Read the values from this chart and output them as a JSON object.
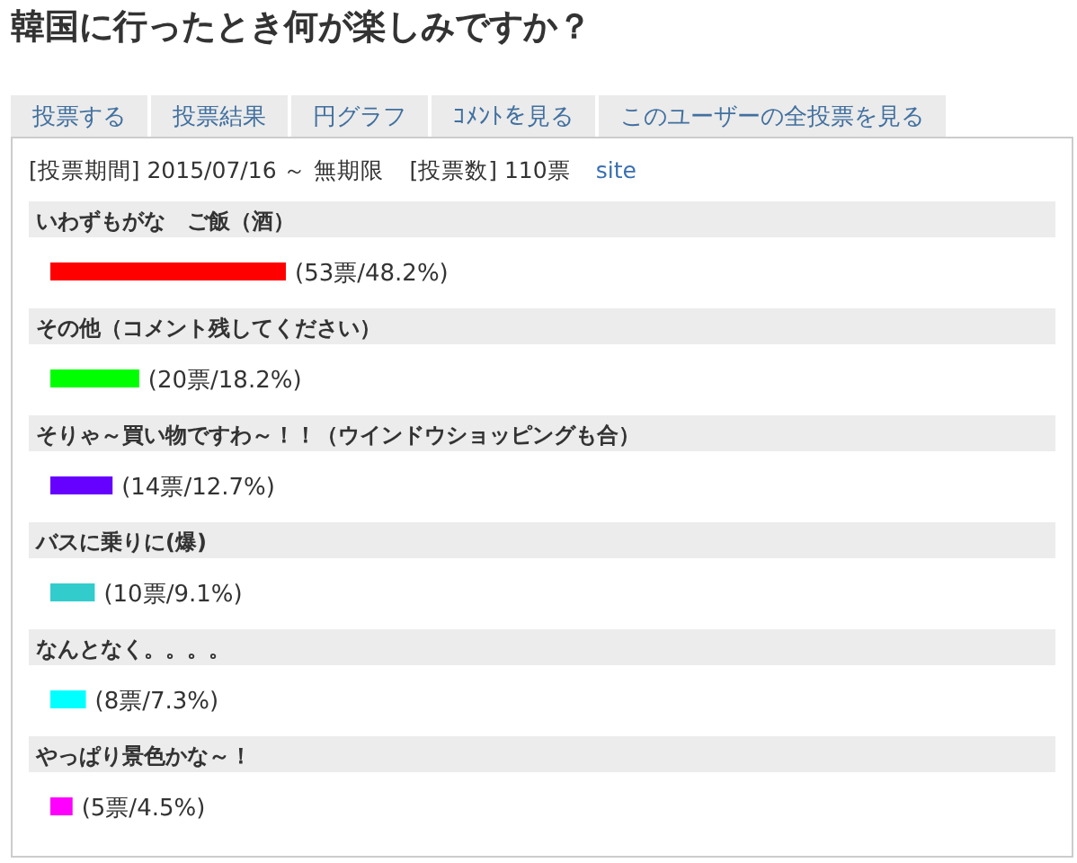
{
  "chart_data": {
    "type": "bar",
    "orientation": "horizontal",
    "title": "韓国に行ったとき何が楽しみですか？",
    "categories": [
      "いわずもがな　ご飯（酒）",
      "その他（コメント残してください）",
      "そりゃ～買い物ですわ～！！（ウインドウショッピングも合）",
      "バスに乗りに(爆)",
      "なんとなく。。。。",
      "やっぱり景色かな～！"
    ],
    "values": [
      53,
      20,
      14,
      10,
      8,
      5
    ],
    "colors": [
      "#ff0000",
      "#00ff00",
      "#6600ff",
      "#33cccc",
      "#00ffff",
      "#ff00ff"
    ],
    "value_labels": [
      "(53票/48.2%)",
      "(20票/18.2%)",
      "(14票/12.7%)",
      "(10票/9.1%)",
      "(8票/7.3%)",
      "(5票/4.5%)"
    ],
    "annotations": [
      "投票する",
      "投票結果",
      "円グラフ",
      "ｺﾒﾝﾄを見る",
      "このユーザーの全投票を見る",
      "[投票期間] 2015/07/16 ～ 無期限",
      "[投票数] 110票",
      "site"
    ]
  }
}
